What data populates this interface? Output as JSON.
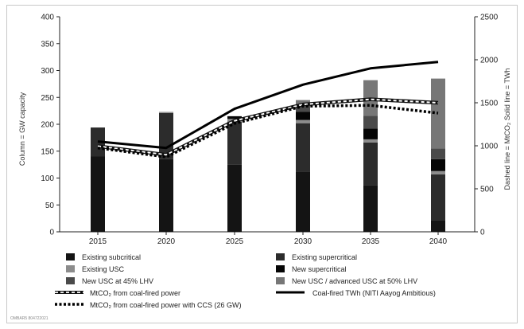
{
  "credit": "OMBAR5 804722021",
  "chart_data": {
    "type": "bar+line",
    "categories": [
      "2015",
      "2020",
      "2025",
      "2030",
      "2035",
      "2040"
    ],
    "y_left": {
      "label": "Column = GW capacity",
      "min": 0,
      "max": 400,
      "ticks": [
        0,
        50,
        100,
        150,
        200,
        250,
        300,
        350,
        400
      ]
    },
    "y_right": {
      "label": "Dashed line = MtCO₂  Solid line = TWh",
      "min": 0,
      "max": 2500,
      "ticks": [
        0,
        500,
        1000,
        1500,
        2000,
        2500
      ]
    },
    "bar_series": [
      {
        "name": "Existing subcritical",
        "color": "#141414",
        "values": [
          140,
          135,
          125,
          112,
          86,
          22
        ]
      },
      {
        "name": "Existing supercritical",
        "color": "#2c2c2c",
        "values": [
          54,
          86,
          80,
          90,
          80,
          85
        ]
      },
      {
        "name": "Existing USC",
        "color": "#8c8c8c",
        "values": [
          0,
          2,
          5,
          6,
          6,
          6
        ]
      },
      {
        "name": "New supercritical",
        "color": "#050505",
        "values": [
          0,
          0,
          5,
          15,
          20,
          22
        ]
      },
      {
        "name": "New USC at 45% LHV",
        "color": "#4a4a4a",
        "values": [
          0,
          0,
          0,
          14,
          24,
          20
        ]
      },
      {
        "name": "New USC / advanced USC at 50% LHV",
        "color": "#777777",
        "values": [
          0,
          0,
          0,
          8,
          66,
          130
        ]
      }
    ],
    "line_series": [
      {
        "name": "MtCO₂ from coal-fired power",
        "style": "dashed-white",
        "axis": "right",
        "values": [
          995,
          895,
          1290,
          1480,
          1540,
          1500
        ]
      },
      {
        "name": "MtCO₂ from coal-fired power with CCS (26 GW)",
        "style": "dashed-black",
        "axis": "right",
        "values": [
          975,
          870,
          1260,
          1460,
          1470,
          1380
        ]
      },
      {
        "name": "Coal-fired TWh (NITI Aayog Ambitious)",
        "style": "solid-black",
        "axis": "right",
        "values": [
          1050,
          975,
          1430,
          1710,
          1900,
          1975
        ]
      }
    ],
    "legend_position": "bottom",
    "grid": false
  }
}
